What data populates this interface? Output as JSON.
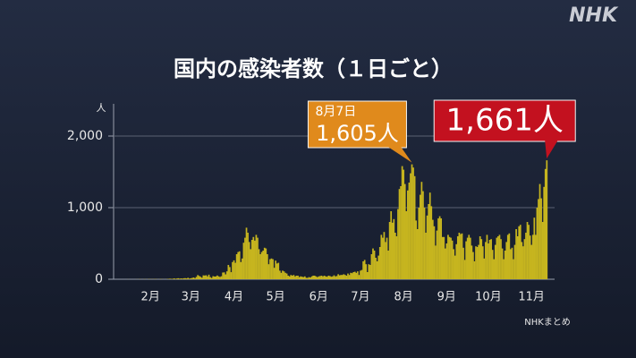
{
  "chart_data": {
    "type": "bar",
    "title": "国内の感染者数（１日ごと）",
    "y_unit": "人",
    "source": "NHKまとめ",
    "logo": "NHK",
    "color": "#c6b51f",
    "grid": true,
    "ylim": [
      0,
      2400
    ],
    "yticks": [
      0,
      {
        "value": 1000,
        "label": "1,000"
      },
      {
        "value": 2000,
        "label": "2,000"
      }
    ],
    "callout_date": "8月7日",
    "categories": [
      null,
      null,
      null,
      null,
      null,
      null,
      null,
      null,
      null,
      null,
      null,
      null,
      null,
      null,
      null,
      null,
      null,
      null,
      null,
      null,
      null,
      null,
      null,
      null,
      null,
      null,
      "2月",
      null,
      null,
      null,
      null,
      null,
      null,
      null,
      null,
      null,
      null,
      null,
      null,
      null,
      null,
      null,
      null,
      null,
      null,
      null,
      null,
      null,
      null,
      null,
      null,
      null,
      null,
      null,
      null,
      "3月",
      null,
      null,
      null,
      null,
      null,
      null,
      null,
      null,
      null,
      null,
      null,
      null,
      null,
      null,
      null,
      null,
      null,
      null,
      null,
      null,
      null,
      null,
      null,
      null,
      null,
      null,
      null,
      null,
      null,
      null,
      "4月",
      null,
      null,
      null,
      null,
      null,
      null,
      null,
      null,
      null,
      null,
      null,
      null,
      null,
      null,
      null,
      null,
      null,
      null,
      null,
      null,
      null,
      null,
      null,
      null,
      null,
      null,
      null,
      null,
      null,
      "5月",
      null,
      null,
      null,
      null,
      null,
      null,
      null,
      null,
      null,
      null,
      null,
      null,
      null,
      null,
      null,
      null,
      null,
      null,
      null,
      null,
      null,
      null,
      null,
      null,
      null,
      null,
      null,
      null,
      null,
      null,
      "6月",
      null,
      null,
      null,
      null,
      null,
      null,
      null,
      null,
      null,
      null,
      null,
      null,
      null,
      null,
      null,
      null,
      null,
      null,
      null,
      null,
      null,
      null,
      null,
      null,
      null,
      null,
      null,
      null,
      null,
      "7月",
      null,
      null,
      null,
      null,
      null,
      null,
      null,
      null,
      null,
      null,
      null,
      null,
      null,
      null,
      null,
      null,
      null,
      null,
      null,
      null,
      null,
      null,
      null,
      null,
      null,
      null,
      null,
      null,
      null,
      null,
      "8月",
      null,
      null,
      null,
      null,
      null,
      null,
      null,
      null,
      null,
      null,
      null,
      null,
      null,
      null,
      null,
      null,
      null,
      null,
      null,
      null,
      null,
      null,
      null,
      null,
      null,
      null,
      null,
      null,
      null,
      null,
      "9月",
      null,
      null,
      null,
      null,
      null,
      null,
      null,
      null,
      null,
      null,
      null,
      null,
      null,
      null,
      null,
      null,
      null,
      null,
      null,
      null,
      null,
      null,
      null,
      null,
      null,
      null,
      null,
      null,
      null,
      "10月",
      null,
      null,
      null,
      null,
      null,
      null,
      null,
      null,
      null,
      null,
      null,
      null,
      null,
      null,
      null,
      null,
      null,
      null,
      null,
      null,
      null,
      null,
      null,
      null,
      null,
      null,
      null,
      null,
      null,
      null,
      "11月",
      null,
      null,
      null,
      null,
      null,
      null,
      null,
      null,
      null,
      null,
      null
    ],
    "values": [
      0,
      0,
      0,
      0,
      0,
      0,
      0,
      0,
      0,
      0,
      1,
      0,
      0,
      0,
      0,
      0,
      1,
      0,
      2,
      1,
      0,
      1,
      2,
      0,
      1,
      3,
      1,
      2,
      1,
      3,
      2,
      1,
      0,
      3,
      2,
      1,
      1,
      0,
      3,
      5,
      8,
      5,
      6,
      12,
      5,
      10,
      14,
      8,
      12,
      9,
      14,
      15,
      11,
      20,
      9,
      14,
      18,
      25,
      15,
      33,
      58,
      46,
      34,
      21,
      54,
      52,
      56,
      40,
      64,
      30,
      18,
      43,
      38,
      39,
      52,
      40,
      33,
      42,
      94,
      96,
      68,
      110,
      200,
      170,
      99,
      240,
      264,
      230,
      350,
      380,
      390,
      240,
      290,
      510,
      580,
      720,
      650,
      520,
      420,
      550,
      590,
      540,
      620,
      580,
      420,
      350,
      380,
      400,
      440,
      430,
      350,
      210,
      280,
      290,
      280,
      160,
      260,
      220,
      230,
      120,
      90,
      120,
      110,
      90,
      80,
      50,
      40,
      60,
      50,
      60,
      40,
      50,
      50,
      30,
      40,
      35,
      30,
      40,
      20,
      20,
      30,
      25,
      40,
      50,
      50,
      40,
      30,
      40,
      45,
      50,
      40,
      50,
      40,
      35,
      50,
      45,
      35,
      40,
      55,
      40,
      45,
      70,
      55,
      60,
      60,
      70,
      60,
      50,
      80,
      60,
      90,
      85,
      100,
      105,
      90,
      110,
      60,
      120,
      130,
      250,
      270,
      210,
      100,
      210,
      200,
      350,
      430,
      400,
      300,
      250,
      330,
      450,
      620,
      580,
      660,
      520,
      580,
      400,
      800,
      950,
      790,
      840,
      650,
      600,
      980,
      1260,
      1300,
      1580,
      1530,
      1330,
      950,
      1240,
      1350,
      1480,
      1605,
      1560,
      1440,
      820,
      700,
      1000,
      1180,
      1360,
      1230,
      1000,
      650,
      890,
      1050,
      1210,
      1020,
      830,
      740,
      470,
      680,
      850,
      880,
      850,
      590,
      590,
      430,
      500,
      620,
      590,
      580,
      540,
      420,
      330,
      490,
      600,
      650,
      630,
      640,
      440,
      270,
      530,
      580,
      620,
      580,
      470,
      380,
      250,
      460,
      450,
      480,
      600,
      560,
      460,
      290,
      520,
      620,
      500,
      550,
      560,
      410,
      280,
      480,
      580,
      600,
      620,
      560,
      430,
      280,
      400,
      520,
      620,
      640,
      420,
      440,
      280,
      480,
      700,
      600,
      740,
      760,
      520,
      460,
      560,
      650,
      800,
      760,
      610,
      480,
      620,
      860,
      620,
      1000,
      1120,
      1330,
      1130,
      800,
      1290,
      1540,
      1661
    ],
    "value_labels": [
      null,
      null,
      null,
      null,
      null,
      null,
      null,
      null,
      null,
      null,
      null,
      null,
      null,
      null,
      null,
      null,
      null,
      null,
      null,
      null,
      null,
      null,
      null,
      null,
      null,
      null,
      null,
      null,
      null,
      null,
      null,
      null,
      null,
      null,
      null,
      null,
      null,
      null,
      null,
      null,
      null,
      null,
      null,
      null,
      null,
      null,
      null,
      null,
      null,
      null,
      null,
      null,
      null,
      null,
      null,
      null,
      null,
      null,
      null,
      null,
      null,
      null,
      null,
      null,
      null,
      null,
      null,
      null,
      null,
      null,
      null,
      null,
      null,
      null,
      null,
      null,
      null,
      null,
      null,
      null,
      null,
      null,
      null,
      null,
      null,
      null,
      null,
      null,
      null,
      null,
      null,
      null,
      null,
      null,
      null,
      null,
      null,
      null,
      null,
      null,
      null,
      null,
      null,
      null,
      null,
      null,
      null,
      null,
      null,
      null,
      null,
      null,
      null,
      null,
      null,
      null,
      null,
      null,
      null,
      null,
      null,
      null,
      null,
      null,
      null,
      null,
      null,
      null,
      null,
      null,
      null,
      null,
      null,
      null,
      null,
      null,
      null,
      null,
      null,
      null,
      null,
      null,
      null,
      null,
      null,
      null,
      null,
      null,
      null,
      null,
      null,
      null,
      null,
      null,
      null,
      null,
      null,
      null,
      null,
      null,
      null,
      null,
      null,
      null,
      null,
      null,
      null,
      null,
      null,
      null,
      null,
      null,
      null,
      null,
      null,
      null,
      null,
      null,
      null,
      null,
      null,
      null,
      null,
      null,
      null,
      null,
      null,
      null,
      null,
      null,
      null,
      null,
      null,
      null,
      null,
      null,
      null,
      null,
      null,
      null,
      null,
      null,
      null,
      null,
      null,
      null,
      null,
      null,
      null,
      null,
      null,
      null,
      null,
      null,
      "1,605人",
      null,
      null,
      null,
      null,
      null,
      null,
      null,
      null,
      null,
      null,
      null,
      null,
      null,
      null,
      null,
      null,
      null,
      null,
      null,
      null,
      null,
      null,
      null,
      null,
      null,
      null,
      null,
      null,
      null,
      null,
      null,
      null,
      null,
      null,
      null,
      null,
      null,
      null,
      null,
      null,
      null,
      null,
      null,
      null,
      null,
      null,
      null,
      null,
      null,
      null,
      null,
      null,
      null,
      null,
      null,
      null,
      null,
      null,
      null,
      null,
      null,
      null,
      null,
      null,
      null,
      null,
      null,
      null,
      null,
      null,
      null,
      null,
      null,
      null,
      null,
      null,
      null,
      null,
      null,
      null,
      null,
      null,
      null,
      null,
      null,
      null,
      null,
      null,
      null,
      null,
      null,
      null,
      null,
      null,
      null,
      null,
      "1,661人"
    ]
  }
}
